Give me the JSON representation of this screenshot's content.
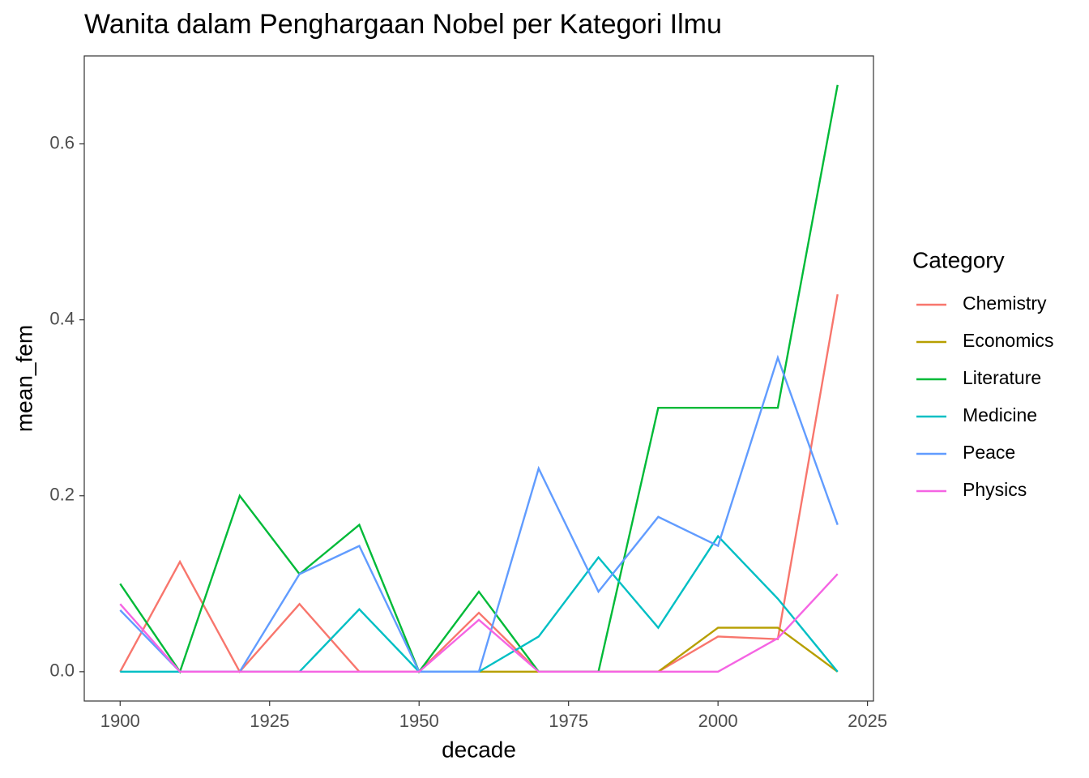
{
  "chart_data": {
    "type": "line",
    "title": "Wanita dalam Penghargaan Nobel per Kategori Ilmu",
    "x_label": "decade",
    "y_label": "mean_fem",
    "legend_title": "Category",
    "x": [
      1900,
      1910,
      1920,
      1930,
      1940,
      1950,
      1960,
      1970,
      1980,
      1990,
      2000,
      2010,
      2020
    ],
    "series": [
      {
        "name": "Chemistry",
        "color": "#F8766D",
        "values": [
          0,
          0.125,
          0,
          0.077,
          0,
          0,
          0.067,
          0,
          0,
          0,
          0.04,
          0.037,
          0.429
        ]
      },
      {
        "name": "Economics",
        "color": "#B79F00",
        "values": [
          null,
          null,
          null,
          null,
          null,
          null,
          0,
          0,
          0,
          0,
          0.05,
          0.05,
          0
        ]
      },
      {
        "name": "Literature",
        "color": "#00BA38",
        "values": [
          0.1,
          0,
          0.2,
          0.111,
          0.167,
          0,
          0.091,
          0,
          0,
          0.3,
          0.3,
          0.3,
          0.667
        ]
      },
      {
        "name": "Medicine",
        "color": "#00BFC4",
        "values": [
          0,
          0,
          0,
          0,
          0.071,
          0,
          0,
          0.04,
          0.13,
          0.05,
          0.154,
          0.083,
          0
        ]
      },
      {
        "name": "Peace",
        "color": "#619CFF",
        "values": [
          0.07,
          0,
          0,
          0.111,
          0.143,
          0,
          0,
          0.231,
          0.091,
          0.176,
          0.143,
          0.357,
          0.167
        ]
      },
      {
        "name": "Physics",
        "color": "#F564E3",
        "values": [
          0.077,
          0,
          0,
          0,
          0,
          0,
          0.059,
          0,
          0,
          0,
          0,
          0.038,
          0.111
        ]
      }
    ],
    "xlim": [
      1894,
      2026
    ],
    "xticks": [
      1900,
      1925,
      1950,
      1975,
      2000,
      2025
    ],
    "ylim": [
      -0.0333,
      0.7
    ],
    "yticks": [
      {
        "value": 0,
        "label": "0.0"
      },
      0.2,
      0.4,
      0.6
    ],
    "legend_position": "right"
  }
}
